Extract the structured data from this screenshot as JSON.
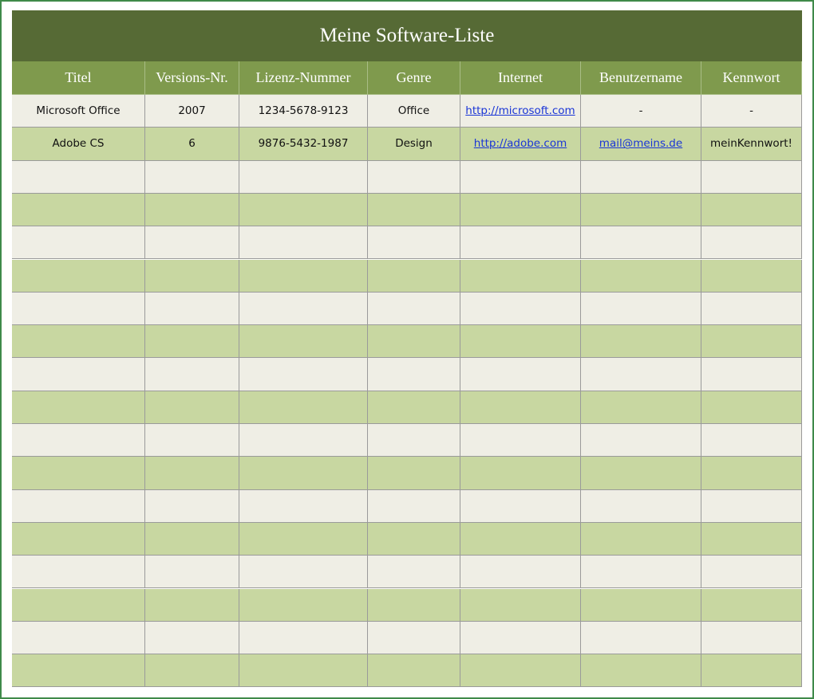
{
  "header": {
    "title": "Meine Software-Liste"
  },
  "table": {
    "columns": [
      "Titel",
      "Versions-Nr.",
      "Lizenz-Nummer",
      "Genre",
      "Internet",
      "Benutzername",
      "Kennwort"
    ],
    "rows": [
      [
        "Microsoft Office",
        "2007",
        "1234-5678-9123",
        "Office",
        "http://microsoft.com",
        "-",
        "-"
      ],
      [
        "Adobe CS",
        "6",
        "9876-5432-1987",
        "Design",
        "http://adobe.com",
        "mail@meins.de",
        "meinKennwort!"
      ]
    ]
  }
}
